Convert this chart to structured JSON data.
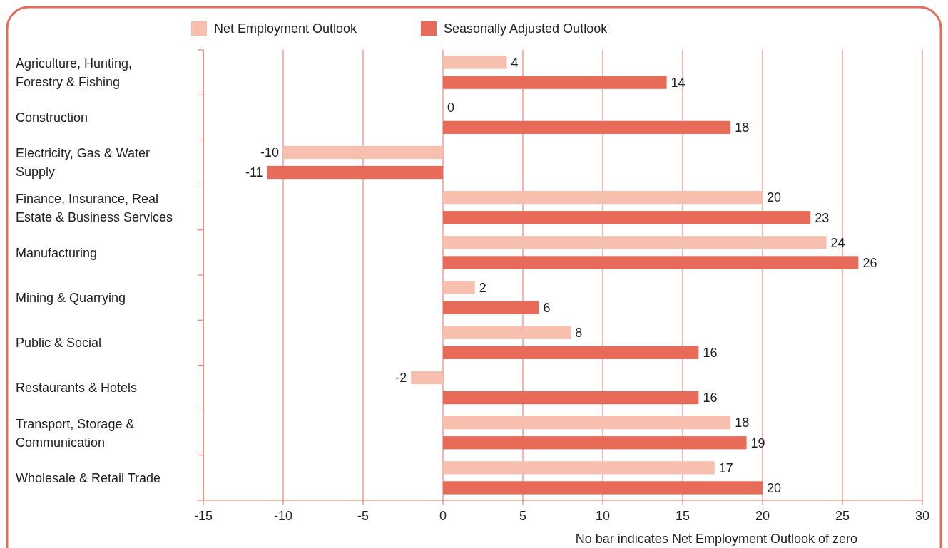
{
  "chart_data": {
    "type": "bar",
    "orientation": "horizontal",
    "categories": [
      "Agriculture, Hunting, Forestry & Fishing",
      "Construction",
      "Electricity, Gas & Water Supply",
      "Finance, Insurance, Real Estate & Business Services",
      "Manufacturing",
      "Mining & Quarrying",
      "Public & Social",
      "Restaurants & Hotels",
      "Transport, Storage & Communication",
      "Wholesale & Retail Trade"
    ],
    "series": [
      {
        "name": "Net Employment Outlook",
        "color": "#f7bfae",
        "values": [
          4,
          0,
          -10,
          20,
          24,
          2,
          8,
          -2,
          18,
          17
        ]
      },
      {
        "name": "Seasonally Adjusted Outlook",
        "color": "#e86b5a",
        "values": [
          14,
          18,
          -11,
          23,
          26,
          6,
          16,
          16,
          19,
          20
        ]
      }
    ],
    "xlim": [
      -15,
      30
    ],
    "xticks": [
      -15,
      -10,
      -5,
      0,
      5,
      10,
      15,
      20,
      25,
      30
    ],
    "grid": "x",
    "legend": "top",
    "data_labels": true,
    "annotations": [
      "No bar indicates Net Employment Outlook of zero"
    ]
  }
}
